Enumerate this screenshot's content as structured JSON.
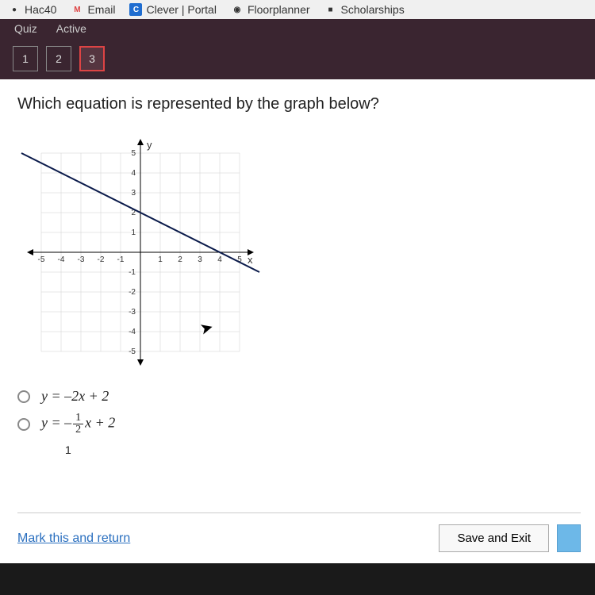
{
  "bookmarks": [
    {
      "label": "Hac40",
      "icon": "●",
      "iconBg": "transparent",
      "iconColor": "#333"
    },
    {
      "label": "Email",
      "icon": "M",
      "iconBg": "transparent",
      "iconColor": "#d44"
    },
    {
      "label": "Clever | Portal",
      "icon": "C",
      "iconBg": "#1f6dd0",
      "iconColor": "#fff"
    },
    {
      "label": "Floorplanner",
      "icon": "◉",
      "iconBg": "transparent",
      "iconColor": "#333"
    },
    {
      "label": "Scholarships",
      "icon": "■",
      "iconBg": "transparent",
      "iconColor": "#333"
    }
  ],
  "tabs": {
    "left": "Quiz",
    "right": "Active"
  },
  "qnums": [
    "1",
    "2",
    "3"
  ],
  "active_q": 2,
  "question": "Which equation is represented by the graph below?",
  "graph": {
    "axis_label_y": "y",
    "axis_label_x": "x",
    "xmin": -5,
    "xmax": 5,
    "ymin": -5,
    "ymax": 5,
    "xticks": [
      -5,
      -4,
      -3,
      -2,
      -1,
      1,
      2,
      3,
      4,
      5
    ],
    "yticks": [
      -5,
      -4,
      -3,
      -2,
      -1,
      1,
      2,
      3,
      4,
      5
    ],
    "line": {
      "x1": -6,
      "y1": 5,
      "x2": 6,
      "y2": -1
    },
    "grid_color": "#cfcfcf",
    "axis_color": "#000",
    "line_color": "#0a1a4a",
    "line_width": 2,
    "bg": "#ffffff",
    "tick_fontsize": 10
  },
  "options": {
    "a": "y = –2x + 2",
    "b_pre": "y = –",
    "b_n": "1",
    "b_d": "2",
    "b_post": "x + 2",
    "partial": "1"
  },
  "footer": {
    "mark": "Mark this and return",
    "save": "Save and Exit"
  }
}
